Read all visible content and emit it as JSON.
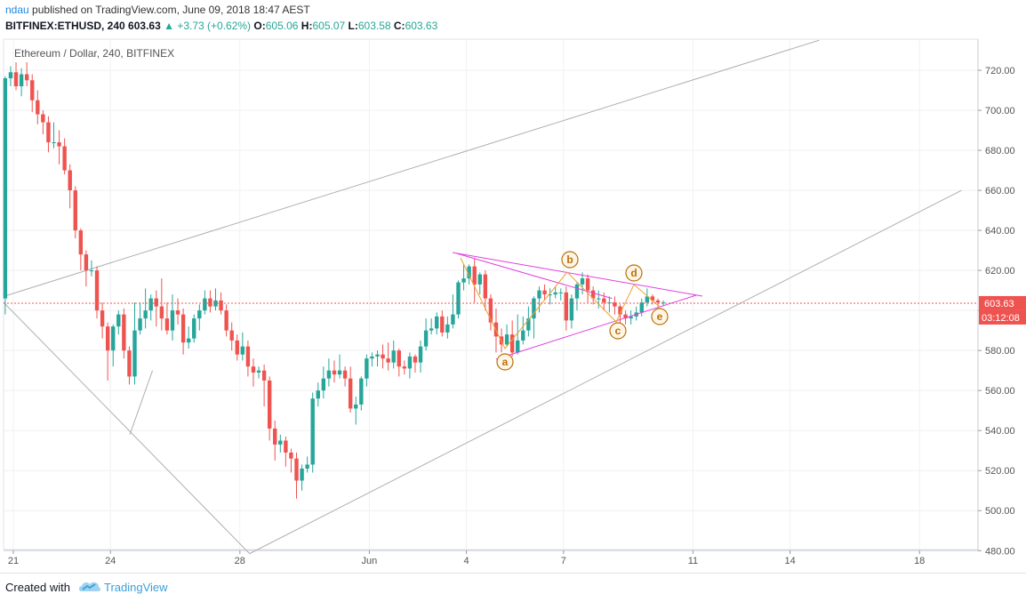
{
  "header": {
    "author": "ndau",
    "published_text": "published on TradingView.com, June 09, 2018 18:47 AEST",
    "symbol": "BITFINEX:ETHUSD, 240",
    "last": "603.63",
    "change": "+3.73 (+0.62%)",
    "o_label": "O:",
    "o_value": "605.06",
    "h_label": "H:",
    "h_value": "605.07",
    "l_label": "L:",
    "l_value": "603.58",
    "c_label": "C:",
    "c_value": "603.63"
  },
  "footer": {
    "created_with": "Created with",
    "brand": "TradingView"
  },
  "colors": {
    "up": "#26a69a",
    "down": "#ef5350",
    "pink_lines": "#e040e0",
    "wave_lines": "#f0a030",
    "wave_labels": "#b8720a",
    "channel": "#b0b0b0",
    "price_line": "#ef5350"
  },
  "chart_data": {
    "type": "candlestick",
    "title": "Ethereum / Dollar, 240, BITFINEX",
    "ylim": [
      477,
      728
    ],
    "y_ticks": [
      "720.00",
      "700.00",
      "680.00",
      "660.00",
      "640.00",
      "620.00",
      "600.00",
      "580.00",
      "560.00",
      "540.00",
      "520.00",
      "500.00",
      "480.00"
    ],
    "y_tick_values": [
      720,
      700,
      680,
      660,
      640,
      620,
      600,
      580,
      560,
      540,
      520,
      500,
      480
    ],
    "x_range_days": [
      20.9,
      18.9
    ],
    "x_ticks": [
      {
        "label": "21",
        "day": 21
      },
      {
        "label": "24",
        "day": 24
      },
      {
        "label": "28",
        "day": 28
      },
      {
        "label": "Jun",
        "day": 32
      },
      {
        "label": "4",
        "day": 35
      },
      {
        "label": "7",
        "day": 38
      },
      {
        "label": "11",
        "day": 42
      },
      {
        "label": "14",
        "day": 45
      },
      {
        "label": "18",
        "day": 49
      }
    ],
    "last_price": {
      "value": 603.63,
      "label": "603.63",
      "countdown": "03:12:08"
    },
    "candles": [
      [
        606,
        716,
        717,
        598
      ],
      [
        716,
        719,
        722,
        712
      ],
      [
        719,
        712,
        724,
        710
      ],
      [
        712,
        718,
        721,
        707
      ],
      [
        718,
        715,
        724,
        712
      ],
      [
        715,
        705,
        718,
        699
      ],
      [
        705,
        698,
        710,
        693
      ],
      [
        698,
        694,
        700,
        688
      ],
      [
        694,
        684,
        697,
        679
      ],
      [
        684,
        684,
        694,
        681
      ],
      [
        684,
        682,
        690,
        673
      ],
      [
        682,
        670,
        686,
        668
      ],
      [
        670,
        660,
        673,
        651
      ],
      [
        660,
        640,
        662,
        636
      ],
      [
        640,
        628,
        641,
        620
      ],
      [
        628,
        620,
        630,
        612
      ],
      [
        620,
        620,
        625,
        617
      ],
      [
        620,
        600,
        622,
        596
      ],
      [
        600,
        592,
        604,
        586
      ],
      [
        592,
        580,
        594,
        565
      ],
      [
        580,
        592,
        593,
        572
      ],
      [
        592,
        598,
        600,
        588
      ],
      [
        598,
        580,
        601,
        576
      ],
      [
        580,
        567,
        582,
        563
      ],
      [
        567,
        590,
        604,
        563
      ],
      [
        590,
        596,
        604,
        588
      ],
      [
        596,
        600,
        611,
        591
      ],
      [
        600,
        606,
        608,
        595
      ],
      [
        606,
        602,
        610,
        592
      ],
      [
        602,
        596,
        616,
        590
      ],
      [
        596,
        590,
        604,
        588
      ],
      [
        590,
        600,
        608,
        585
      ],
      [
        600,
        598,
        606,
        593
      ],
      [
        598,
        584,
        601,
        578
      ],
      [
        584,
        586,
        592,
        581
      ],
      [
        586,
        596,
        598,
        584
      ],
      [
        596,
        600,
        603,
        590
      ],
      [
        600,
        606,
        610,
        598
      ],
      [
        606,
        602,
        610,
        599
      ],
      [
        602,
        605,
        611,
        600
      ],
      [
        605,
        600,
        609,
        598
      ],
      [
        600,
        590,
        603,
        587
      ],
      [
        590,
        585,
        594,
        580
      ],
      [
        585,
        578,
        588,
        575
      ],
      [
        578,
        582,
        589,
        575
      ],
      [
        582,
        572,
        585,
        567
      ],
      [
        572,
        569,
        576,
        562
      ],
      [
        569,
        570,
        572,
        566
      ],
      [
        570,
        565,
        573,
        552
      ],
      [
        565,
        541,
        567,
        535
      ],
      [
        541,
        533,
        545,
        525
      ],
      [
        533,
        535,
        538,
        529
      ],
      [
        535,
        529,
        537,
        522
      ],
      [
        529,
        526,
        531,
        519
      ],
      [
        526,
        515,
        529,
        506
      ],
      [
        515,
        521,
        523,
        510
      ],
      [
        521,
        523,
        527,
        519
      ],
      [
        523,
        556,
        559,
        519
      ],
      [
        556,
        560,
        564,
        552
      ],
      [
        560,
        566,
        572,
        556
      ],
      [
        566,
        570,
        576,
        562
      ],
      [
        570,
        568,
        575,
        564
      ],
      [
        568,
        570,
        578,
        566
      ],
      [
        570,
        566,
        572,
        562
      ],
      [
        566,
        551,
        572,
        549
      ],
      [
        551,
        553,
        557,
        543
      ],
      [
        553,
        566,
        567,
        550
      ],
      [
        566,
        576,
        578,
        562
      ],
      [
        576,
        577,
        579,
        572
      ],
      [
        577,
        578,
        580,
        572
      ],
      [
        578,
        576,
        583,
        571
      ],
      [
        576,
        574,
        584,
        570
      ],
      [
        574,
        580,
        585,
        571
      ],
      [
        580,
        572,
        581,
        567
      ],
      [
        572,
        571,
        575,
        568
      ],
      [
        571,
        577,
        579,
        566
      ],
      [
        577,
        574,
        578,
        569
      ],
      [
        574,
        582,
        585,
        569
      ],
      [
        582,
        590,
        596,
        580
      ],
      [
        590,
        591,
        596,
        588
      ],
      [
        591,
        597,
        599,
        588
      ],
      [
        597,
        589,
        600,
        587
      ],
      [
        589,
        593,
        597,
        586
      ],
      [
        593,
        598,
        608,
        591
      ],
      [
        598,
        614,
        615,
        596
      ],
      [
        614,
        616,
        623,
        610
      ],
      [
        616,
        622,
        623,
        613
      ],
      [
        622,
        613,
        626,
        604
      ],
      [
        613,
        618,
        619,
        608
      ],
      [
        618,
        606,
        620,
        600
      ],
      [
        606,
        594,
        608,
        590
      ],
      [
        594,
        587,
        601,
        579
      ],
      [
        587,
        583,
        591,
        579
      ],
      [
        583,
        588,
        593,
        582
      ],
      [
        588,
        579,
        595,
        577
      ],
      [
        579,
        585,
        598,
        578
      ],
      [
        585,
        590,
        597,
        583
      ],
      [
        590,
        596,
        602,
        587
      ],
      [
        596,
        606,
        607,
        586
      ],
      [
        606,
        610,
        612,
        599
      ],
      [
        610,
        608,
        613,
        605
      ],
      [
        608,
        608,
        611,
        603
      ],
      [
        608,
        609,
        612,
        606
      ],
      [
        609,
        609,
        611,
        605
      ],
      [
        609,
        595,
        612,
        590
      ],
      [
        595,
        606,
        608,
        591
      ],
      [
        606,
        613,
        614,
        600
      ],
      [
        613,
        616,
        619,
        608
      ],
      [
        616,
        610,
        618,
        604
      ],
      [
        610,
        606,
        612,
        603
      ],
      [
        606,
        606,
        610,
        601
      ],
      [
        606,
        604,
        609,
        600
      ],
      [
        604,
        604,
        607,
        599
      ],
      [
        604,
        602,
        607,
        598
      ],
      [
        602,
        598,
        603,
        594
      ],
      [
        598,
        596,
        600,
        593
      ],
      [
        596,
        597,
        600,
        593
      ],
      [
        597,
        599,
        602,
        595
      ],
      [
        599,
        604,
        606,
        597
      ],
      [
        604,
        607,
        611,
        602
      ],
      [
        607,
        605,
        608,
        603
      ],
      [
        605,
        604,
        606,
        602
      ],
      [
        604,
        604,
        605,
        602
      ]
    ],
    "annotations": {
      "wave_labels": [
        "a",
        "b",
        "c",
        "d",
        "e"
      ]
    }
  }
}
